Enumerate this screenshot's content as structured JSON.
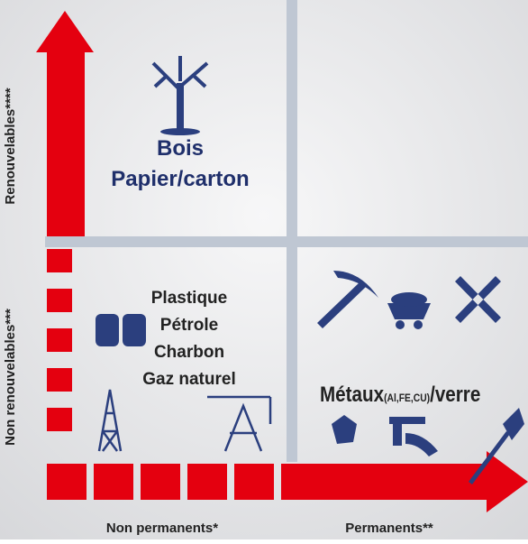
{
  "axes": {
    "y_top": "Renouvelables****",
    "y_bottom": "Non renouvelables***",
    "x_left": "Non permanents*",
    "x_right": "Permanents**"
  },
  "quadrants": {
    "renewable": [
      "Bois",
      "Papier/carton"
    ],
    "fossil": [
      "Plastique",
      "Pétrole",
      "Charbon",
      "Gaz naturel"
    ],
    "metals": {
      "name": "Métaux",
      "sub": "(Al,FE,CU)",
      "suffix": "/verre"
    }
  }
}
